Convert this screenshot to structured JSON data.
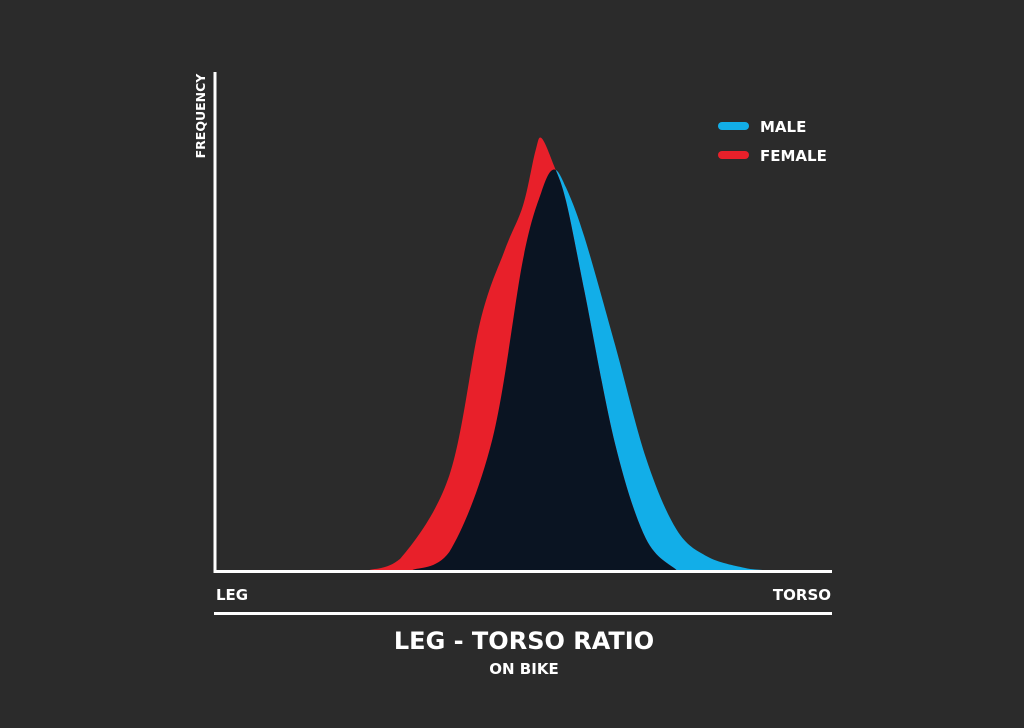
{
  "colors": {
    "background": "#2b2b2b",
    "axis": "#ffffff",
    "male": "#12aee8",
    "female": "#e8202a",
    "overlap": "#0a1422"
  },
  "chart_data": {
    "type": "area",
    "title": "LEG - TORSO RATIO",
    "subtitle": "ON BIKE",
    "xlabel_left": "LEG",
    "xlabel_right": "TORSO",
    "ylabel": "FREQUENCY",
    "xlim": [
      0,
      1
    ],
    "ylim": [
      0,
      1
    ],
    "grid": false,
    "legend": "top-right",
    "series": [
      {
        "name": "MALE",
        "color": "#12aee8",
        "x": [
          0.32,
          0.38,
          0.45,
          0.5,
          0.53,
          0.55,
          0.57,
          0.6,
          0.65,
          0.7,
          0.75,
          0.8,
          0.86,
          0.89
        ],
        "y": [
          0.0,
          0.04,
          0.29,
          0.69,
          0.84,
          0.89,
          0.85,
          0.74,
          0.5,
          0.25,
          0.09,
          0.03,
          0.005,
          0.0
        ]
      },
      {
        "name": "FEMALE",
        "color": "#e8202a",
        "x": [
          0.25,
          0.3,
          0.38,
          0.43,
          0.47,
          0.5,
          0.52,
          0.53,
          0.55,
          0.57,
          0.6,
          0.65,
          0.7,
          0.75
        ],
        "y": [
          0.0,
          0.025,
          0.21,
          0.55,
          0.71,
          0.81,
          0.93,
          0.96,
          0.9,
          0.82,
          0.62,
          0.28,
          0.07,
          0.0
        ]
      }
    ]
  }
}
